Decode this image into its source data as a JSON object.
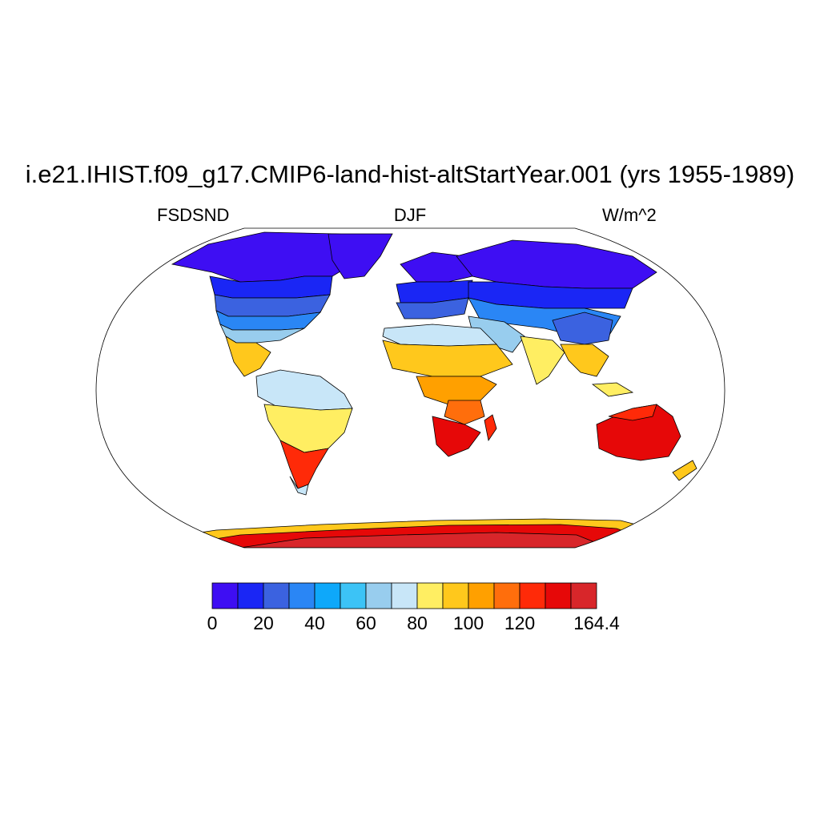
{
  "title": "i.e21.IHIST.f09_g17.CMIP6-land-hist-altStartYear.001 (yrs 1955-1989)",
  "left_label": "FSDSND",
  "center_label": "DJF",
  "right_label": "W/m^2",
  "colorbar": {
    "colors": [
      "#3e0ef3",
      "#1a26f5",
      "#3b62e0",
      "#2a86f5",
      "#0ea8fa",
      "#3cc3f6",
      "#98cdee",
      "#c8e6f8",
      "#ffee62",
      "#ffc81c",
      "#ffa000",
      "#ff6e0c",
      "#ff2a08",
      "#e60808",
      "#d8262a"
    ],
    "tick_labels": [
      "0",
      "20",
      "40",
      "60",
      "80",
      "100",
      "120",
      "164.4"
    ]
  },
  "chart_data": {
    "type": "heatmap",
    "projection": "Robinson",
    "variable": "FSDSND",
    "season": "DJF",
    "units": "W/m^2",
    "range": [
      0,
      164.4
    ],
    "levels": [
      0,
      10,
      20,
      30,
      40,
      50,
      60,
      70,
      80,
      90,
      100,
      110,
      120,
      130,
      140,
      164.4
    ],
    "regions": [
      {
        "name": "Arctic / northern high latitudes",
        "approx_value": 3
      },
      {
        "name": "North America mid-latitudes",
        "approx_value": 35
      },
      {
        "name": "Southern USA / Mexico",
        "approx_value": 85
      },
      {
        "name": "Amazon",
        "approx_value": 75
      },
      {
        "name": "Southern South America",
        "approx_value": 125
      },
      {
        "name": "Europe",
        "approx_value": 15
      },
      {
        "name": "Sahara",
        "approx_value": 75
      },
      {
        "name": "Central Africa",
        "approx_value": 100
      },
      {
        "name": "Southern Africa",
        "approx_value": 130
      },
      {
        "name": "Siberia",
        "approx_value": 10
      },
      {
        "name": "China",
        "approx_value": 40
      },
      {
        "name": "India",
        "approx_value": 80
      },
      {
        "name": "Australia",
        "approx_value": 140
      },
      {
        "name": "Antarctica",
        "approx_value": 155
      }
    ]
  }
}
